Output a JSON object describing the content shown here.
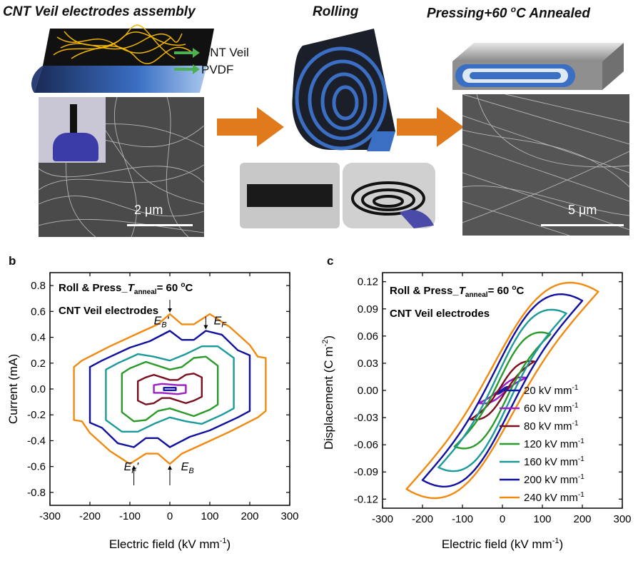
{
  "top": {
    "title1": "CNT Veil electrodes assembly",
    "title2": "Rolling",
    "title3_main": "Pressing+60 ",
    "title3_sup": "o",
    "title3_end": "C Annealed",
    "label_cnt": "CNT Veil",
    "label_pvdf": "PVDF",
    "scale1": "2 μm",
    "scale2": "5 μm"
  },
  "colors": {
    "arrow": "#e07a1c",
    "film_blue": "#3a6fc4",
    "film_dark": "#1b1f2a",
    "cnt_yellow": "#f0b400",
    "green_arrow": "#4caf50"
  },
  "chart_data": [
    {
      "panel": "b",
      "type": "line",
      "title_main": "Roll & Press_",
      "title_T": "T",
      "title_sub": "anneal",
      "title_end": "= 60 ",
      "title_deg": "o",
      "title_C": "C",
      "subtitle": "CNT Veil electrodes",
      "xlabel": "Electric field (kV mm",
      "xlabel_sup": "-1",
      "xlabel_end": ")",
      "ylabel": "Current (mA)",
      "xlim": [
        -300,
        300
      ],
      "ylim": [
        -0.9,
        0.9
      ],
      "xticks": [
        -300,
        -200,
        -100,
        0,
        100,
        200,
        300
      ],
      "yticks": [
        -0.8,
        -0.6,
        -0.4,
        -0.2,
        0.0,
        0.2,
        0.4,
        0.6,
        0.8
      ],
      "ytick_labels": [
        "-0.8",
        "-0.6",
        "-0.4",
        "-0.2",
        "0.0",
        "0.2",
        "0.4",
        "0.6",
        "0.8"
      ],
      "annotations": [
        {
          "main": "E",
          "sub": "B",
          "extra": "'",
          "x": -40,
          "y": 0.5
        },
        {
          "main": "E",
          "sub": "F",
          "extra": "",
          "x": 110,
          "y": 0.5
        },
        {
          "main": "E",
          "sub": "F",
          "extra": "'",
          "x": -115,
          "y": -0.63
        },
        {
          "main": "E",
          "sub": "B",
          "extra": "",
          "x": 28,
          "y": -0.63
        }
      ],
      "series": [
        {
          "color": "#1a1aa0",
          "points": [
            [
              -15,
              0.01
            ],
            [
              15,
              0.01
            ],
            [
              15,
              -0.01
            ],
            [
              -15,
              -0.01
            ]
          ]
        },
        {
          "color": "#9b1fc7",
          "points": [
            [
              -40,
              0.03
            ],
            [
              -20,
              0.04
            ],
            [
              20,
              0.03
            ],
            [
              40,
              0.03
            ],
            [
              40,
              -0.03
            ],
            [
              20,
              -0.04
            ],
            [
              -20,
              -0.03
            ],
            [
              -40,
              -0.03
            ]
          ]
        },
        {
          "color": "#7a0f1f",
          "points": [
            [
              -80,
              0.06
            ],
            [
              -60,
              0.09
            ],
            [
              -40,
              0.11
            ],
            [
              -20,
              0.09
            ],
            [
              0,
              0.07
            ],
            [
              20,
              0.07
            ],
            [
              40,
              0.11
            ],
            [
              60,
              0.12
            ],
            [
              80,
              0.09
            ],
            [
              80,
              -0.06
            ],
            [
              60,
              -0.09
            ],
            [
              40,
              -0.11
            ],
            [
              20,
              -0.09
            ],
            [
              0,
              -0.07
            ],
            [
              -20,
              -0.07
            ],
            [
              -40,
              -0.11
            ],
            [
              -60,
              -0.12
            ],
            [
              -80,
              -0.09
            ]
          ]
        },
        {
          "color": "#2a9a2a",
          "points": [
            [
              -120,
              0.12
            ],
            [
              -100,
              0.16
            ],
            [
              -60,
              0.21
            ],
            [
              -30,
              0.18
            ],
            [
              0,
              0.15
            ],
            [
              30,
              0.17
            ],
            [
              60,
              0.24
            ],
            [
              90,
              0.25
            ],
            [
              120,
              0.18
            ],
            [
              120,
              -0.12
            ],
            [
              100,
              -0.16
            ],
            [
              60,
              -0.21
            ],
            [
              30,
              -0.18
            ],
            [
              0,
              -0.15
            ],
            [
              -30,
              -0.17
            ],
            [
              -60,
              -0.24
            ],
            [
              -90,
              -0.25
            ],
            [
              -120,
              -0.18
            ]
          ]
        },
        {
          "color": "#1c9a9a",
          "points": [
            [
              -160,
              0.15
            ],
            [
              -130,
              0.2
            ],
            [
              -80,
              0.27
            ],
            [
              -40,
              0.25
            ],
            [
              0,
              0.22
            ],
            [
              40,
              0.27
            ],
            [
              80,
              0.33
            ],
            [
              120,
              0.33
            ],
            [
              160,
              0.24
            ],
            [
              160,
              -0.15
            ],
            [
              130,
              -0.2
            ],
            [
              80,
              -0.27
            ],
            [
              40,
              -0.25
            ],
            [
              0,
              -0.22
            ],
            [
              -40,
              -0.27
            ],
            [
              -80,
              -0.33
            ],
            [
              -120,
              -0.33
            ],
            [
              -160,
              -0.24
            ]
          ]
        },
        {
          "color": "#1010a0",
          "points": [
            [
              -200,
              0.17
            ],
            [
              -170,
              0.22
            ],
            [
              -100,
              0.32
            ],
            [
              -50,
              0.37
            ],
            [
              0,
              0.45
            ],
            [
              30,
              0.38
            ],
            [
              60,
              0.38
            ],
            [
              90,
              0.45
            ],
            [
              130,
              0.42
            ],
            [
              170,
              0.3
            ],
            [
              200,
              0.26
            ],
            [
              200,
              -0.17
            ],
            [
              170,
              -0.22
            ],
            [
              100,
              -0.32
            ],
            [
              50,
              -0.37
            ],
            [
              0,
              -0.45
            ],
            [
              -30,
              -0.38
            ],
            [
              -60,
              -0.38
            ],
            [
              -90,
              -0.45
            ],
            [
              -130,
              -0.42
            ],
            [
              -170,
              -0.3
            ],
            [
              -200,
              -0.26
            ]
          ]
        },
        {
          "color": "#f08a10",
          "points": [
            [
              -240,
              0.17
            ],
            [
              -220,
              0.22
            ],
            [
              -150,
              0.33
            ],
            [
              -80,
              0.43
            ],
            [
              -30,
              0.5
            ],
            [
              0,
              0.58
            ],
            [
              30,
              0.5
            ],
            [
              60,
              0.5
            ],
            [
              100,
              0.58
            ],
            [
              150,
              0.48
            ],
            [
              200,
              0.34
            ],
            [
              220,
              0.25
            ],
            [
              240,
              0.24
            ],
            [
              240,
              -0.17
            ],
            [
              220,
              -0.22
            ],
            [
              150,
              -0.33
            ],
            [
              80,
              -0.43
            ],
            [
              30,
              -0.5
            ],
            [
              0,
              -0.58
            ],
            [
              -30,
              -0.5
            ],
            [
              -60,
              -0.5
            ],
            [
              -100,
              -0.58
            ],
            [
              -150,
              -0.48
            ],
            [
              -200,
              -0.34
            ],
            [
              -220,
              -0.25
            ],
            [
              -240,
              -0.24
            ]
          ]
        }
      ]
    },
    {
      "panel": "c",
      "type": "line",
      "title_main": "Roll & Press_",
      "title_T": "T",
      "title_sub": "anneal",
      "title_end": "= 60 ",
      "title_deg": "o",
      "title_C": "C",
      "subtitle": "CNT Veil electrodes",
      "xlabel": "Electric field (kV mm",
      "xlabel_sup": "-1",
      "xlabel_end": ")",
      "ylabel": "Displacement (C m",
      "ylabel_sup": "-2",
      "ylabel_end": ")",
      "xlim": [
        -300,
        300
      ],
      "ylim": [
        -0.13,
        0.13
      ],
      "xticks": [
        -300,
        -200,
        -100,
        0,
        100,
        200,
        300
      ],
      "yticks": [
        -0.12,
        -0.09,
        -0.06,
        -0.03,
        0.0,
        0.03,
        0.06,
        0.09,
        0.12
      ],
      "ytick_labels": [
        "-0.12",
        "-0.09",
        "-0.06",
        "-0.03",
        "0.00",
        "0.03",
        "0.06",
        "0.09",
        "0.12"
      ],
      "legend_position": "lower-right",
      "series": [
        {
          "name": "20 kV mm",
          "sup": "-1",
          "color": "#1a1aa0",
          "Emax": 20,
          "Dmax": 0.004,
          "Pr": 0.001
        },
        {
          "name": "60 kV mm",
          "sup": "-1",
          "color": "#9b1fc7",
          "Emax": 60,
          "Dmax": 0.014,
          "Pr": 0.004
        },
        {
          "name": "80 kV mm",
          "sup": "-1",
          "color": "#7a0f1f",
          "Emax": 80,
          "Dmax": 0.032,
          "Pr": 0.007
        },
        {
          "name": "120 kV mm",
          "sup": "-1",
          "color": "#2a9a2a",
          "Emax": 120,
          "Dmax": 0.062,
          "Pr": 0.018
        },
        {
          "name": "160 kV mm",
          "sup": "-1",
          "color": "#1c9a9a",
          "Emax": 160,
          "Dmax": 0.085,
          "Pr": 0.028
        },
        {
          "name": "200 kV mm",
          "sup": "-1",
          "color": "#1010a0",
          "Emax": 200,
          "Dmax": 0.099,
          "Pr": 0.038
        },
        {
          "name": "240 kV mm",
          "sup": "-1",
          "color": "#f08a10",
          "Emax": 240,
          "Dmax": 0.109,
          "Pr": 0.046
        }
      ]
    }
  ]
}
